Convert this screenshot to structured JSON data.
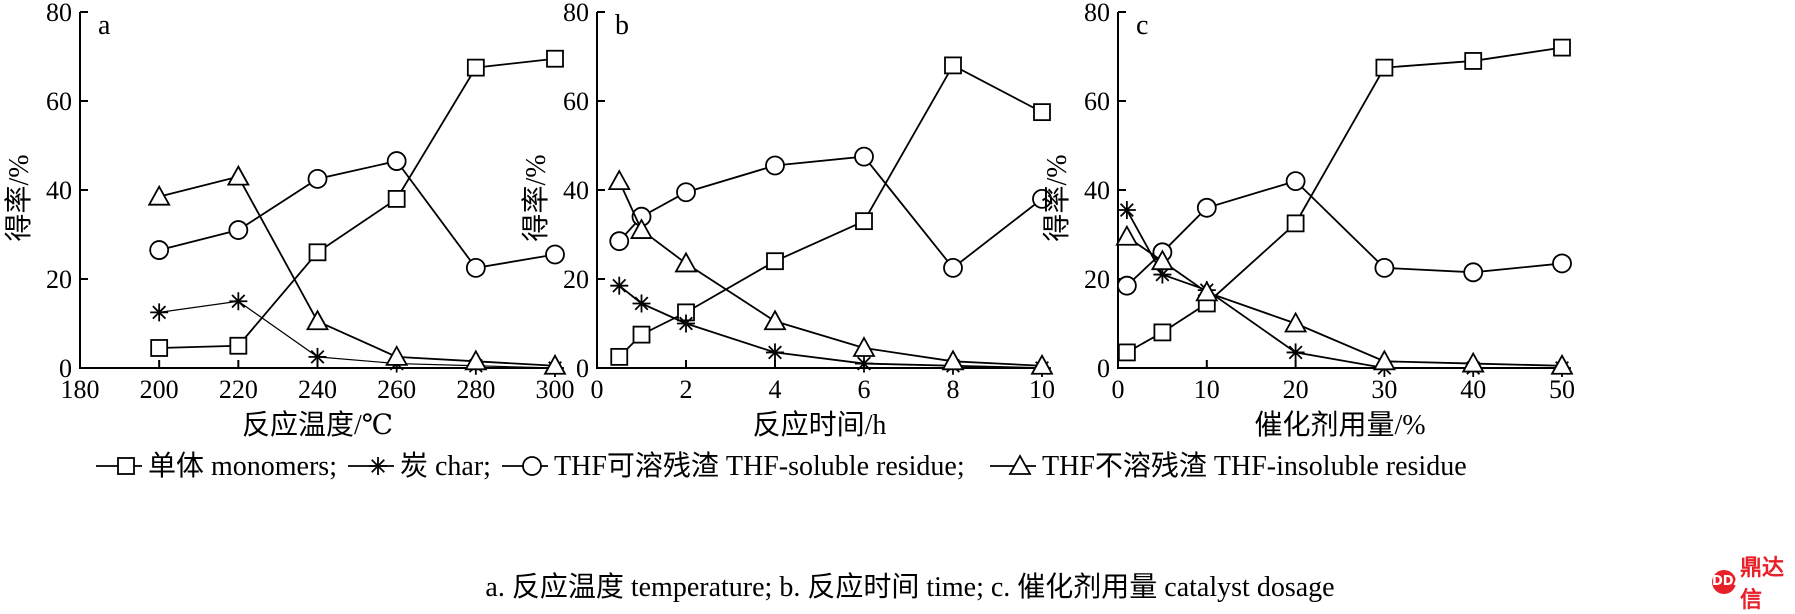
{
  "chart_data": [
    {
      "type": "line",
      "panel": "a",
      "xlabel": "反应温度/℃",
      "ylabel": "得率/%",
      "xlim": [
        180,
        300
      ],
      "ylim": [
        0,
        80
      ],
      "xticks": [
        180,
        200,
        220,
        240,
        260,
        280,
        300
      ],
      "yticks": [
        0,
        20,
        40,
        60,
        80
      ],
      "series": [
        {
          "marker": "square",
          "x": [
            200,
            220,
            240,
            260,
            280,
            300
          ],
          "y": [
            4.5,
            5,
            26,
            38,
            67.5,
            69.5
          ]
        },
        {
          "marker": "star",
          "x": [
            200,
            220,
            240,
            260,
            280,
            300
          ],
          "y": [
            12.5,
            15,
            2.5,
            1,
            0.5,
            0
          ]
        },
        {
          "marker": "circle",
          "x": [
            200,
            220,
            240,
            260,
            280,
            300
          ],
          "y": [
            26.5,
            31,
            42.5,
            46.5,
            22.5,
            25.5
          ]
        },
        {
          "marker": "triangle",
          "x": [
            200,
            220,
            240,
            260,
            280,
            300
          ],
          "y": [
            38.5,
            43,
            10.5,
            2.5,
            1.5,
            0.5
          ]
        }
      ]
    },
    {
      "type": "line",
      "panel": "b",
      "xlabel": "反应时间/h",
      "ylabel": "得率/%",
      "xlim": [
        0,
        10
      ],
      "ylim": [
        0,
        80
      ],
      "xticks": [
        0,
        2,
        4,
        6,
        8,
        10
      ],
      "yticks": [
        0,
        20,
        40,
        60,
        80
      ],
      "series": [
        {
          "marker": "square",
          "x": [
            0.5,
            1,
            2,
            4,
            6,
            8,
            10
          ],
          "y": [
            2.5,
            7.5,
            12.5,
            24,
            33,
            68,
            57.5
          ]
        },
        {
          "marker": "star",
          "x": [
            0.5,
            1,
            2,
            4,
            6,
            8,
            10
          ],
          "y": [
            18.5,
            14.5,
            10,
            3.5,
            1,
            0.5,
            0
          ]
        },
        {
          "marker": "circle",
          "x": [
            0.5,
            1,
            2,
            4,
            6,
            8,
            10
          ],
          "y": [
            28.5,
            34,
            39.5,
            45.5,
            47.5,
            22.5,
            38
          ]
        },
        {
          "marker": "triangle",
          "x": [
            0.5,
            1,
            2,
            4,
            6,
            8,
            10
          ],
          "y": [
            42,
            31,
            23.5,
            10.5,
            4.5,
            1.5,
            0.5
          ]
        }
      ]
    },
    {
      "type": "line",
      "panel": "c",
      "xlabel": "催化剂用量/%",
      "ylabel": "得率/%",
      "xlim": [
        0,
        50
      ],
      "ylim": [
        0,
        80
      ],
      "xticks": [
        0,
        10,
        20,
        30,
        40,
        50
      ],
      "yticks": [
        0,
        20,
        40,
        60,
        80
      ],
      "series": [
        {
          "marker": "square",
          "x": [
            1,
            5,
            10,
            20,
            30,
            40,
            50
          ],
          "y": [
            3.5,
            8,
            14.5,
            32.5,
            67.5,
            69,
            72
          ]
        },
        {
          "marker": "star",
          "x": [
            1,
            5,
            10,
            20,
            30,
            40,
            50
          ],
          "y": [
            35.5,
            21,
            17.5,
            3.5,
            0,
            0,
            0
          ]
        },
        {
          "marker": "circle",
          "x": [
            1,
            5,
            10,
            20,
            30,
            40,
            50
          ],
          "y": [
            18.5,
            26,
            36,
            42,
            22.5,
            21.5,
            23.5
          ]
        },
        {
          "marker": "triangle",
          "x": [
            1,
            5,
            10,
            20,
            30,
            40,
            50
          ],
          "y": [
            29.5,
            24,
            17,
            10,
            1.5,
            1,
            0.5
          ]
        }
      ]
    }
  ],
  "legend": [
    {
      "marker": "square",
      "label": "单体 monomers;"
    },
    {
      "marker": "star",
      "label": "炭 char;"
    },
    {
      "marker": "circle",
      "label": "THF可溶残渣 THF-soluble residue;"
    },
    {
      "marker": "triangle",
      "label": "THF不溶残渣 THF-insoluble residue"
    }
  ],
  "caption": "a. 反应温度 temperature; b. 反应时间 time; c. 催化剂用量 catalyst dosage",
  "watermark": {
    "logo": "DDA",
    "text": "鼎达信"
  }
}
